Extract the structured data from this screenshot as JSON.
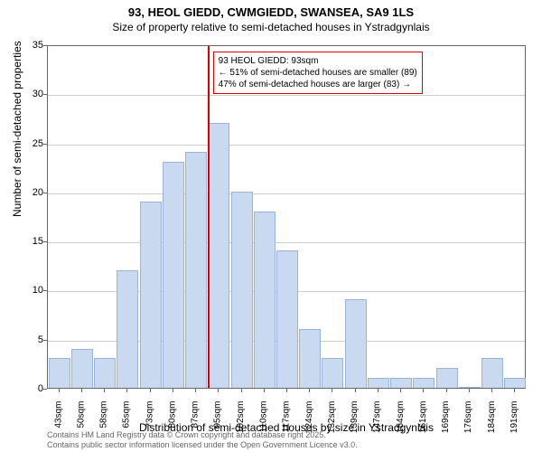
{
  "title": "93, HEOL GIEDD, CWMGIEDD, SWANSEA, SA9 1LS",
  "subtitle": "Size of property relative to semi-detached houses in Ystradgynlais",
  "ylabel": "Number of semi-detached properties",
  "xlabel": "Distribution of semi-detached houses by size in Ystradgynlais",
  "chart": {
    "type": "histogram",
    "background_color": "#ffffff",
    "grid_color": "#cccccc",
    "axis_color": "#666666",
    "bar_color": "#c8d9f0",
    "bar_border_color": "#99b3d9",
    "bar_width": 0.95,
    "ylim": [
      0,
      35
    ],
    "ytick_step": 5,
    "yticks": [
      0,
      5,
      10,
      15,
      20,
      25,
      30,
      35
    ],
    "xtick_labels": [
      "43sqm",
      "50sqm",
      "58sqm",
      "65sqm",
      "73sqm",
      "80sqm",
      "87sqm",
      "95sqm",
      "102sqm",
      "110sqm",
      "117sqm",
      "124sqm",
      "132sqm",
      "139sqm",
      "147sqm",
      "154sqm",
      "161sqm",
      "169sqm",
      "176sqm",
      "184sqm",
      "191sqm"
    ],
    "values": [
      3,
      4,
      3,
      12,
      19,
      23,
      24,
      27,
      20,
      18,
      14,
      6,
      3,
      9,
      1,
      1,
      1,
      2,
      0,
      3,
      1
    ],
    "reference_line": {
      "color": "#dd0000",
      "position_index": 7,
      "width": 2
    }
  },
  "annotation": {
    "border_color": "#dd0000",
    "lines": [
      "93 HEOL GIEDD: 93sqm",
      "← 51% of semi-detached houses are smaller (89)",
      "47% of semi-detached houses are larger (83) →"
    ]
  },
  "footer": {
    "line1": "Contains HM Land Registry data © Crown copyright and database right 2025.",
    "line2": "Contains public sector information licensed under the Open Government Licence v3.0."
  },
  "typography": {
    "title_fontsize": 13,
    "subtitle_fontsize": 12,
    "label_fontsize": 12,
    "tick_fontsize": 11,
    "annotation_fontsize": 10,
    "footer_fontsize": 9
  }
}
